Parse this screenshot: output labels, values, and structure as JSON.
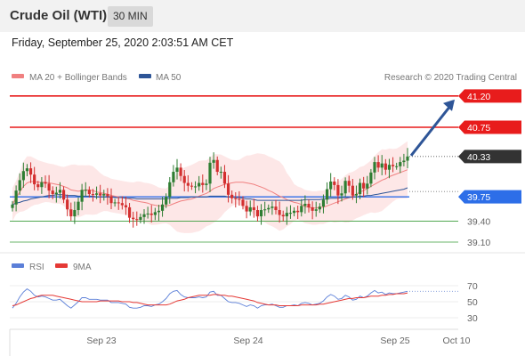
{
  "header": {
    "instrument": "Crude Oil (WTI)",
    "timeframe": "30 MIN"
  },
  "timestamp": "Friday, September 25, 2020 2:03:51 AM CET",
  "legend": {
    "ma20": "MA 20 + Bollinger Bands",
    "ma50": "MA 50",
    "credit": "Research © 2020 Trading Central"
  },
  "rsi_legend": {
    "rsi": "RSI",
    "ma9": "9MA"
  },
  "colors": {
    "ma20": "#f08080",
    "ma50": "#2e5597",
    "resistance": "#e81c1c",
    "support": "#3a9c3a",
    "current": "#333333",
    "pivot": "#2d6ee8",
    "arrow": "#2e5597",
    "up": "#2e7d32",
    "down": "#d32f2f",
    "rsi": "#5b7fd8",
    "ma9": "#e53935",
    "band": "#fbd3d3"
  },
  "chart_data": [
    {
      "type": "candlestick",
      "x_ticks": [
        "Sep 23",
        "Sep 24",
        "Sep 25",
        "Oct 10"
      ],
      "levels": [
        {
          "label": "41.20",
          "value": 41.2,
          "kind": "resistance"
        },
        {
          "label": "40.75",
          "value": 40.75,
          "kind": "resistance"
        },
        {
          "label": "40.33",
          "value": 40.33,
          "kind": "current"
        },
        {
          "label": "39.75",
          "value": 39.75,
          "kind": "pivot"
        },
        {
          "label": "39.40",
          "value": 39.4,
          "kind": "support"
        },
        {
          "label": "39.10",
          "value": 39.1,
          "kind": "support"
        }
      ],
      "close": [
        39.64,
        39.84,
        39.99,
        40.12,
        40.16,
        40.07,
        39.93,
        39.89,
        39.96,
        39.94,
        39.84,
        39.79,
        39.81,
        39.85,
        39.71,
        39.57,
        39.47,
        39.56,
        39.68,
        39.85,
        39.85,
        39.79,
        39.78,
        39.8,
        39.77,
        39.79,
        39.76,
        39.66,
        39.67,
        39.66,
        39.63,
        39.6,
        39.45,
        39.43,
        39.42,
        39.46,
        39.5,
        39.51,
        39.49,
        39.53,
        39.55,
        39.64,
        39.75,
        39.96,
        40.11,
        40.17,
        40.05,
        39.95,
        39.91,
        39.9,
        39.9,
        39.95,
        39.92,
        39.94,
        40.24,
        40.28,
        40.11,
        40.11,
        39.94,
        39.78,
        39.73,
        39.72,
        39.71,
        39.62,
        39.54,
        39.6,
        39.56,
        39.47,
        39.56,
        39.57,
        39.59,
        39.61,
        39.56,
        39.49,
        39.47,
        39.52,
        39.52,
        39.55,
        39.53,
        39.62,
        39.65,
        39.6,
        39.55,
        39.57,
        39.61,
        39.71,
        39.86,
        39.97,
        39.92,
        39.77,
        39.8,
        39.98,
        39.91,
        39.77,
        39.79,
        39.95,
        39.87,
        39.94,
        40.1,
        40.25,
        40.17,
        40.23,
        40.14,
        40.21,
        40.19,
        40.19,
        40.25,
        40.27,
        40.33
      ],
      "ma20": [
        39.64,
        39.74,
        39.82,
        39.9,
        39.95,
        39.97,
        39.97,
        39.96,
        39.96,
        39.96,
        39.95,
        39.94,
        39.93,
        39.92,
        39.9,
        39.88,
        39.85,
        39.84,
        39.83,
        39.84,
        39.85,
        39.85,
        39.84,
        39.82,
        39.81,
        39.8,
        39.79,
        39.77,
        39.76,
        39.75,
        39.74,
        39.73,
        39.72,
        39.7,
        39.69,
        39.68,
        39.67,
        39.66,
        39.64,
        39.63,
        39.62,
        39.62,
        39.62,
        39.63,
        39.65,
        39.67,
        39.69,
        39.7,
        39.71,
        39.72,
        39.74,
        39.76,
        39.78,
        39.8,
        39.83,
        39.87,
        39.89,
        39.91,
        39.93,
        39.94,
        39.95,
        39.96,
        39.96,
        39.96,
        39.95,
        39.94,
        39.93,
        39.91,
        39.89,
        39.87,
        39.84,
        39.82,
        39.79,
        39.76,
        39.74,
        39.71,
        39.69,
        39.67,
        39.66,
        39.64,
        39.61,
        39.6,
        39.59,
        39.59,
        39.6,
        39.6,
        39.62,
        39.64,
        39.66,
        39.68,
        39.7,
        39.72,
        39.74,
        39.76,
        39.79,
        39.82,
        39.84,
        39.87,
        39.9,
        39.93,
        39.96,
        39.99,
        40.01,
        40.04,
        40.06,
        40.08,
        40.1,
        40.12,
        40.14
      ],
      "ma50": [
        39.64,
        39.66,
        39.67,
        39.69,
        39.7,
        39.72,
        39.73,
        39.74,
        39.75,
        39.76,
        39.77,
        39.77,
        39.78,
        39.78,
        39.78,
        39.77,
        39.77,
        39.77,
        39.76,
        39.76,
        39.76,
        39.76,
        39.76,
        39.75,
        39.75,
        39.75,
        39.75,
        39.75,
        39.74,
        39.74,
        39.74,
        39.73,
        39.73,
        39.73,
        39.72,
        39.72,
        39.72,
        39.72,
        39.72,
        39.72,
        39.72,
        39.72,
        39.72,
        39.73,
        39.73,
        39.73,
        39.74,
        39.74,
        39.74,
        39.75,
        39.75,
        39.75,
        39.75,
        39.75,
        39.76,
        39.76,
        39.76,
        39.76,
        39.76,
        39.75,
        39.75,
        39.74,
        39.74,
        39.73,
        39.72,
        39.72,
        39.71,
        39.7,
        39.7,
        39.7,
        39.7,
        39.7,
        39.7,
        39.7,
        39.7,
        39.7,
        39.7,
        39.7,
        39.7,
        39.7,
        39.71,
        39.71,
        39.71,
        39.71,
        39.71,
        39.72,
        39.72,
        39.73,
        39.73,
        39.73,
        39.74,
        39.74,
        39.74,
        39.75,
        39.75,
        39.76,
        39.76,
        39.77,
        39.77,
        39.78,
        39.79,
        39.8,
        39.81,
        39.82,
        39.83,
        39.84,
        39.85,
        39.86,
        39.88
      ]
    },
    {
      "type": "line",
      "y_ticks": [
        "70",
        "50",
        "30"
      ],
      "ylim": [
        20,
        80
      ],
      "rsi": [
        42,
        48,
        56,
        62,
        66,
        63,
        58,
        56,
        57,
        56,
        54,
        52,
        52,
        53,
        49,
        45,
        42,
        46,
        50,
        55,
        55,
        53,
        53,
        53,
        52,
        52,
        52,
        49,
        49,
        49,
        48,
        47,
        43,
        42,
        42,
        43,
        45,
        45,
        44,
        46,
        47,
        50,
        54,
        60,
        63,
        64,
        59,
        56,
        55,
        55,
        55,
        56,
        55,
        56,
        62,
        63,
        58,
        58,
        54,
        50,
        49,
        49,
        48,
        46,
        44,
        46,
        45,
        42,
        45,
        46,
        46,
        47,
        45,
        43,
        43,
        45,
        45,
        46,
        45,
        48,
        49,
        48,
        46,
        47,
        48,
        51,
        56,
        59,
        57,
        53,
        54,
        58,
        56,
        52,
        53,
        57,
        55,
        57,
        61,
        64,
        61,
        62,
        59,
        61,
        60,
        60,
        61,
        62,
        63
      ],
      "ma9": [
        45,
        46,
        48,
        50,
        52,
        54,
        55,
        57,
        58,
        58,
        58,
        58,
        57,
        56,
        55,
        54,
        53,
        52,
        51,
        50,
        50,
        50,
        50,
        50,
        51,
        51,
        51,
        51,
        51,
        51,
        50,
        50,
        50,
        49,
        49,
        48,
        47,
        46,
        46,
        46,
        46,
        46,
        46,
        47,
        49,
        51,
        52,
        53,
        55,
        56,
        57,
        58,
        58,
        58,
        58,
        59,
        59,
        58,
        58,
        57,
        57,
        56,
        55,
        54,
        53,
        52,
        51,
        49,
        48,
        47,
        46,
        46,
        46,
        45,
        45,
        45,
        45,
        45,
        45,
        46,
        46,
        46,
        46,
        46,
        47,
        47,
        48,
        49,
        50,
        51,
        52,
        53,
        54,
        54,
        55,
        55,
        55,
        56,
        57,
        57,
        57,
        58,
        58,
        59,
        59,
        60,
        60,
        60,
        61
      ]
    }
  ]
}
